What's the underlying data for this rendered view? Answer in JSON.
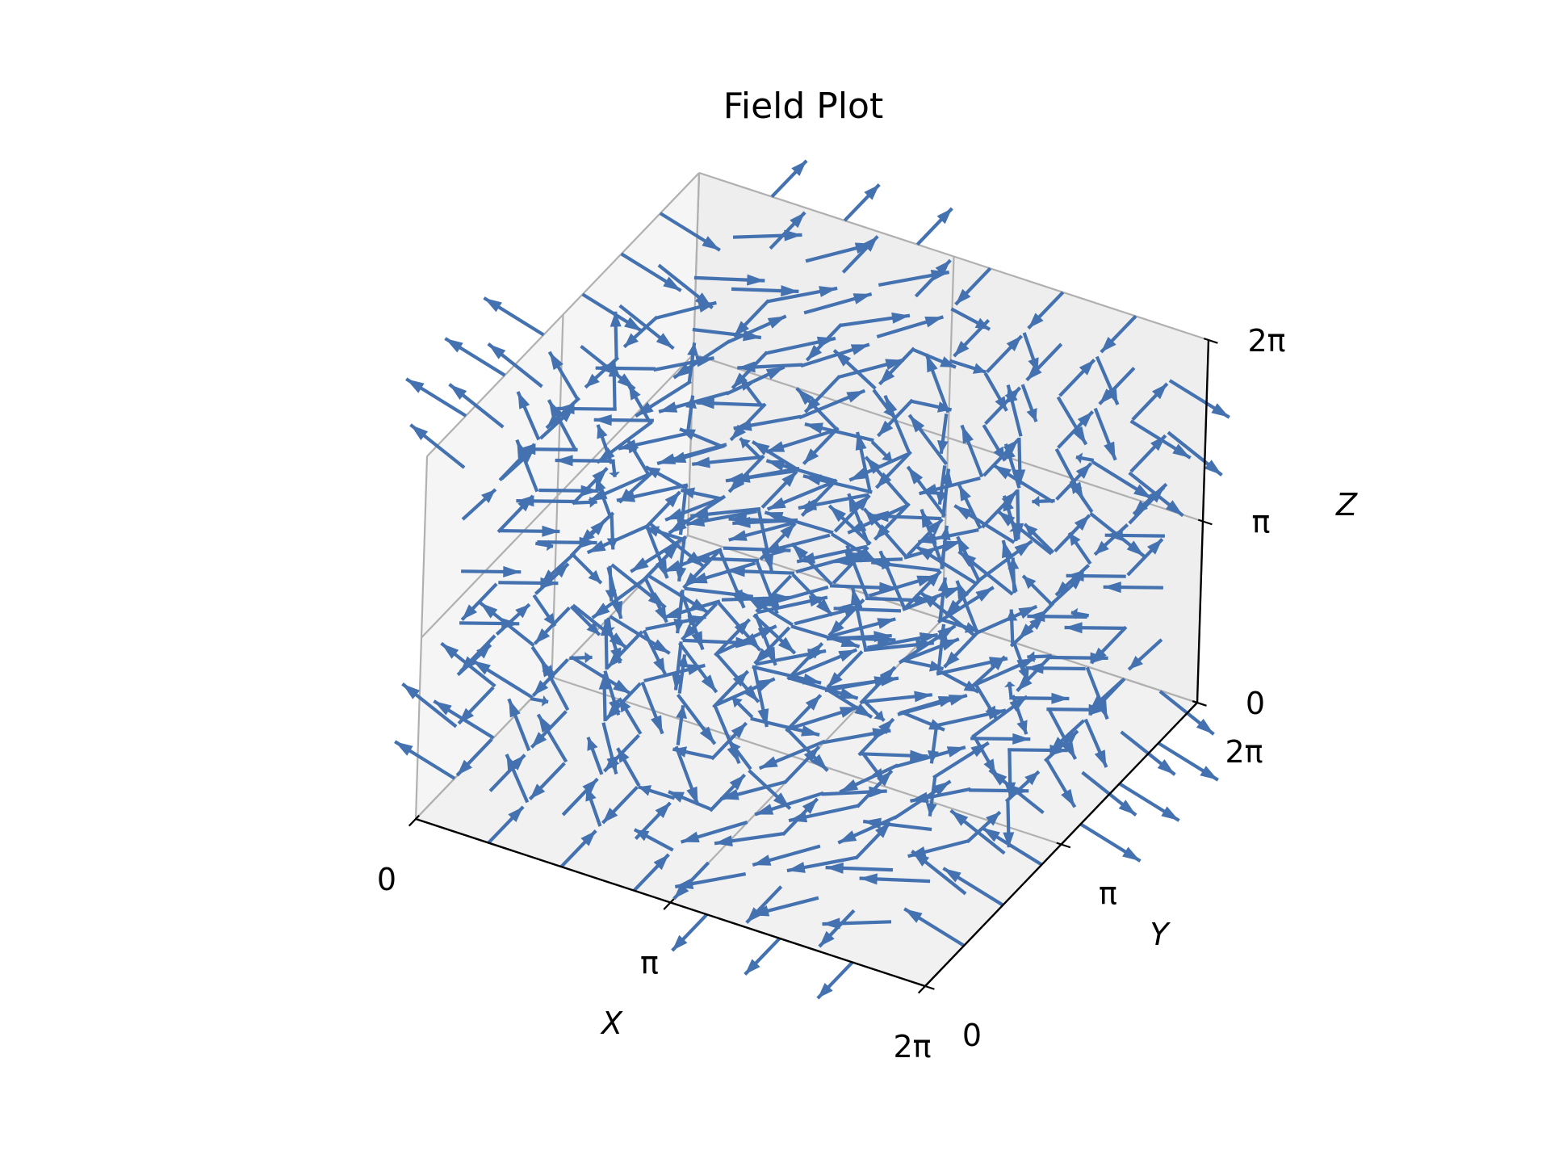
{
  "chart_data": {
    "type": "quiver3d",
    "title": "Field Plot",
    "xlabel": "X",
    "ylabel": "Y",
    "zlabel": "Z",
    "xlim": [
      0,
      6.2832
    ],
    "ylim": [
      0,
      6.2832
    ],
    "zlim": [
      0,
      6.2832
    ],
    "x_ticks": [
      {
        "value": 0,
        "label": "0"
      },
      {
        "value": 3.1416,
        "label": "π"
      },
      {
        "value": 6.2832,
        "label": "2π"
      }
    ],
    "y_ticks": [
      {
        "value": 0,
        "label": "0"
      },
      {
        "value": 3.1416,
        "label": "π"
      },
      {
        "value": 6.2832,
        "label": "2π"
      }
    ],
    "z_ticks": [
      {
        "value": 0,
        "label": "0"
      },
      {
        "value": 3.1416,
        "label": "π"
      },
      {
        "value": 6.2832,
        "label": "2π"
      }
    ],
    "grid": true,
    "arrow_color": "#4471b0",
    "grid_points_per_axis": 8,
    "field": "u = -sin(y)·cos(z), v = sin(x)·cos(z), w = 0.4·cos(x)·sin(y) (approx. reconstruction)",
    "arrow_length": 0.8
  },
  "colors": {
    "pane_light": "#f5f5f5",
    "pane_mid": "#eeeeee",
    "pane_dark": "#e6e6e6",
    "gridline": "#b0b0b0",
    "axis_line": "#000000"
  }
}
